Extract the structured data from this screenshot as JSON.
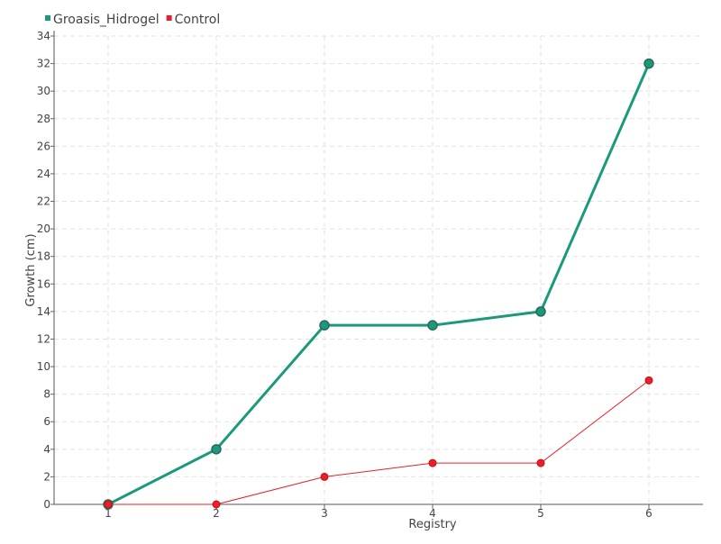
{
  "chart_data": {
    "type": "line",
    "title": "",
    "xlabel": "Registry",
    "ylabel": "Growth (cm)",
    "categories": [
      "1",
      "2",
      "3",
      "4",
      "5",
      "6"
    ],
    "ylim": [
      0,
      34
    ],
    "ytick_step": 2,
    "grid": true,
    "grid_style": "dashed",
    "legend_position": "top-left",
    "series": [
      {
        "name": "Groasis_Hidrogel",
        "color": "#1a9a7a",
        "marker_edge": "#2a6a58",
        "values": [
          0,
          4,
          13,
          13,
          14,
          32
        ]
      },
      {
        "name": "Control",
        "color": "#e8202a",
        "marker_edge": "#c01018",
        "values": [
          0,
          0,
          2,
          3,
          3,
          9
        ]
      }
    ]
  }
}
